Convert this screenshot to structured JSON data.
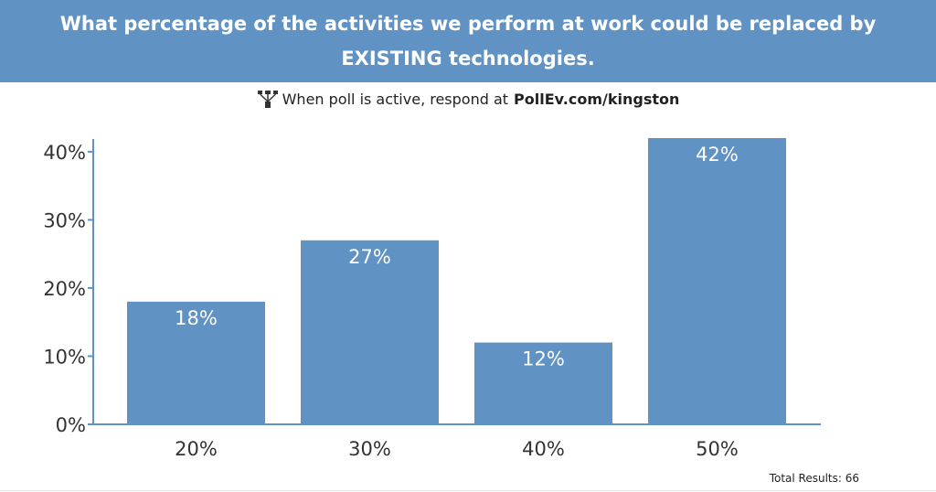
{
  "header": {
    "title": "What percentage of the activities we perform at work could be replaced by EXISTING technologies."
  },
  "respond": {
    "icon": "poll-icon",
    "prefix": "When poll is active, respond at",
    "url": "PollEv.com/kingston"
  },
  "footer": {
    "total_results": "Total Results: 66"
  },
  "colors": {
    "bar": "#6093c4",
    "header_bg": "#6093c4",
    "axis": "#6093c4"
  },
  "chart_data": {
    "type": "bar",
    "categories": [
      "20%",
      "30%",
      "40%",
      "50%"
    ],
    "values": [
      18,
      27,
      12,
      42
    ],
    "data_labels": [
      "18%",
      "27%",
      "12%",
      "42%"
    ],
    "y_ticks": [
      "0%",
      "10%",
      "20%",
      "30%",
      "40%"
    ],
    "ylim": [
      0,
      42
    ],
    "grid": false,
    "legend": "none"
  }
}
